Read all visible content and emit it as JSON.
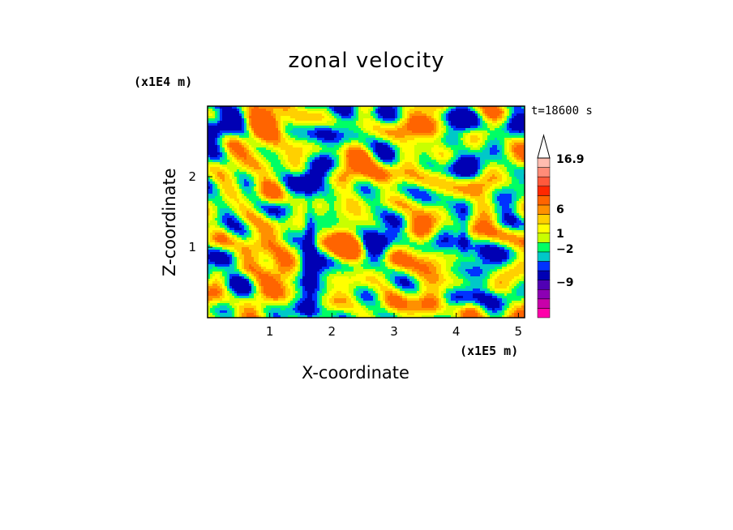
{
  "chart_data": {
    "type": "heatmap",
    "title": "zonal velocity",
    "xlabel": "X-coordinate",
    "ylabel": "Z-coordinate",
    "x_unit": "(x1E5 m)",
    "y_unit": "(x1E4 m)",
    "time_label": "t=18600 s",
    "xlim": [
      0,
      5.1
    ],
    "ylim": [
      0,
      3.0
    ],
    "x_ticks": [
      1,
      2,
      3,
      4,
      5
    ],
    "y_ticks": [
      1,
      2
    ],
    "x_tick_labels": [
      "1",
      "2",
      "3",
      "4",
      "5"
    ],
    "y_tick_labels": [
      "1",
      "2"
    ],
    "colorbar": {
      "labels": [
        "16.9",
        "6",
        "1",
        "-2",
        "-9"
      ],
      "extend_top": true,
      "colors": [
        "#ff00aa",
        "#c800aa",
        "#8c00b4",
        "#5000b4",
        "#0000b4",
        "#0032ff",
        "#00c8c8",
        "#00ff64",
        "#c8ff00",
        "#ffff00",
        "#ffd000",
        "#ff9000",
        "#ff6400",
        "#ff2800",
        "#ff5a3c",
        "#ff8c78",
        "#ffbcb0"
      ]
    },
    "grid": false,
    "legend": "right"
  }
}
